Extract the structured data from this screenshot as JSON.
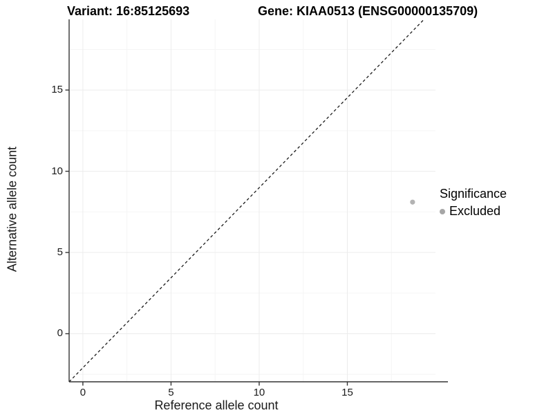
{
  "header": {
    "title_variant": "Variant: 16:85125693",
    "title_gene": "Gene: KIAA0513 (ENSG00000135709)"
  },
  "axes": {
    "x_label": "Reference allele count",
    "y_label": "Alternative allele count"
  },
  "legend": {
    "title": "Significance",
    "entries": [
      {
        "label": "Excluded",
        "marker_color": "#a6a6a6"
      }
    ]
  },
  "chart_data": {
    "type": "scatter",
    "title": "Variant: 16:85125693 — Gene: KIAA0513 (ENSG00000135709)",
    "xlabel": "Reference allele count",
    "ylabel": "Alternative allele count",
    "xlim": [
      -0.78,
      20.0
    ],
    "ylim": [
      -2.96,
      19.35
    ],
    "x_major_ticks": [
      0,
      5,
      10,
      15
    ],
    "y_major_ticks": [
      0,
      5,
      10,
      15
    ],
    "x_minor_ticks": [
      2.5,
      7.5,
      12.5,
      17.5
    ],
    "y_minor_ticks": [
      -2.5,
      2.5,
      7.5,
      12.5,
      17.5
    ],
    "grid": true,
    "legend_position": "right",
    "legend_title": "Significance",
    "series": [
      {
        "name": "Excluded",
        "color": "#b3b3b3",
        "marker_radius": 3.6,
        "points": [
          {
            "x": 18.7,
            "y": 8.1
          }
        ]
      }
    ],
    "reference_line": {
      "meaning": "identity line y = x",
      "style": "dashed",
      "color": "#1a1a1a",
      "x1": -0.78,
      "y1": -2.96,
      "x2": 19.35,
      "y2": 19.35
    },
    "colors": {
      "background": "#ffffff",
      "major_grid": "#ececec",
      "minor_grid": "#f5f5f5",
      "axis": "#333333",
      "tick_text": "#1a1a1a"
    }
  }
}
